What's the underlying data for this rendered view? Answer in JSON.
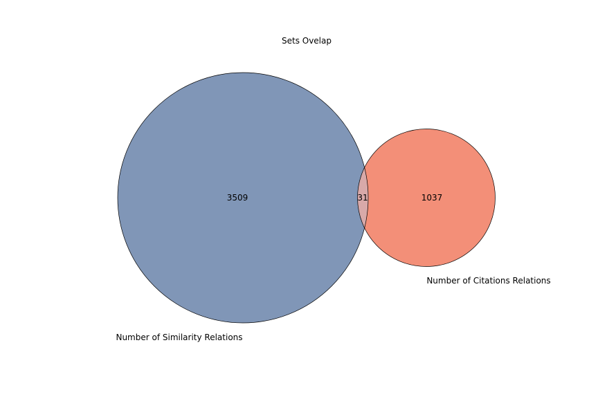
{
  "chart_data": {
    "type": "venn",
    "title": "Sets Ovelap",
    "sets": [
      {
        "name": "Number of Similarity Relations",
        "only_value": "3509",
        "color": "#8096b7"
      },
      {
        "name": "Number of Citations Relations",
        "only_value": "1037",
        "color": "#f38f78"
      }
    ],
    "intersection": {
      "value": "31",
      "color": "#d8a9a9"
    },
    "outline_color": "#000000"
  }
}
